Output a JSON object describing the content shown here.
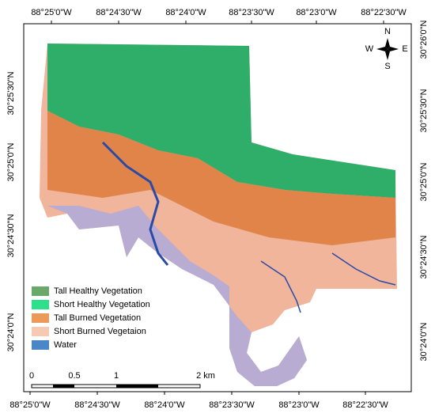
{
  "graticule": {
    "top": [
      "88°25'0\"W",
      "88°24'30\"W",
      "88°24'0\"W",
      "88°23'30\"W",
      "88°23'0\"W",
      "88°22'30\"W"
    ],
    "bottom": [
      "88°25'0\"W",
      "88°24'30\"W",
      "88°24'0\"W",
      "88°23'30\"W",
      "88°23'0\"W",
      "88°22'30\"W"
    ],
    "left": [
      "30°25'30\"N",
      "30°25'0\"N",
      "30°24'30\"N",
      "30°24'0\"N"
    ],
    "right": [
      "30°26'0\"N",
      "30°25'30\"N",
      "30°25'0\"N",
      "30°24'30\"N",
      "30°24'0\"N"
    ]
  },
  "compass": {
    "n": "N",
    "s": "S",
    "e": "E",
    "w": "W"
  },
  "legend": [
    {
      "label": "Tall Healthy Vegetation",
      "color": "#6aa86a"
    },
    {
      "label": "Short Healthy Vegetation",
      "color": "#2ee08a"
    },
    {
      "label": "Tall Burned Vegetation",
      "color": "#ec9a5a"
    },
    {
      "label": "Short Burned Vegetaion",
      "color": "#f6c9b3"
    },
    {
      "label": "Water",
      "color": "#4a86c8"
    }
  ],
  "scale_bar": [
    "0",
    "0.5",
    "1",
    "2 km"
  ]
}
